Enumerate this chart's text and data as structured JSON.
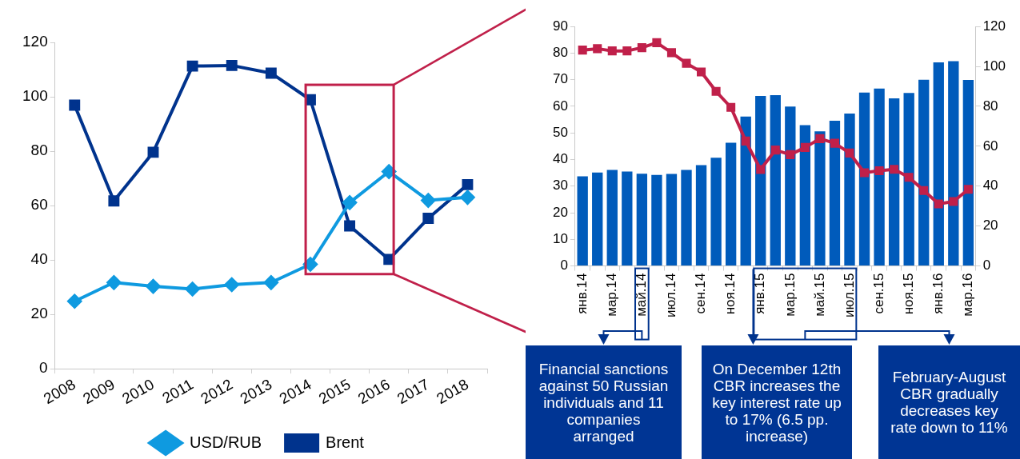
{
  "chart_data": [
    {
      "type": "line",
      "categories": [
        "2008",
        "2009",
        "2010",
        "2011",
        "2012",
        "2013",
        "2014",
        "2015",
        "2016",
        "2017",
        "2018"
      ],
      "series": [
        {
          "name": "USD/RUB",
          "color": "#0f9ae0",
          "marker": "diamond",
          "values": [
            24.8,
            31.7,
            30.3,
            29.3,
            30.9,
            31.7,
            38.4,
            61.1,
            72.5,
            61.9,
            63.0
          ]
        },
        {
          "name": "Brent",
          "color": "#00338d",
          "marker": "square",
          "values": [
            96.9,
            61.7,
            79.6,
            111.3,
            111.5,
            108.7,
            98.9,
            52.5,
            40.2,
            55.3,
            67.7
          ]
        }
      ],
      "ylim": [
        0,
        120
      ],
      "yticks": [
        0,
        20,
        40,
        60,
        80,
        100,
        120
      ],
      "grid": false,
      "legend": "bottom"
    },
    {
      "type": "bar",
      "categories": [
        "янв.14",
        null,
        "мар.14",
        null,
        "май.14",
        null,
        "июл.14",
        null,
        "сен.14",
        null,
        "ноя.14",
        null,
        "янв.15",
        null,
        "мар.15",
        null,
        "май.15",
        null,
        "июл.15",
        null,
        "сен.15",
        null,
        "ноя.15",
        null,
        "янв.16",
        null,
        "мар.16"
      ],
      "series": [
        {
          "type": "bar",
          "color": "#005bbb",
          "values": [
            33.7,
            35.1,
            36.1,
            35.5,
            34.7,
            34.2,
            34.6,
            36.1,
            37.9,
            40.7,
            46.3,
            56.2,
            63.9,
            64.2,
            59.9,
            52.9,
            50.6,
            54.6,
            57.3,
            65.2,
            66.7,
            63.0,
            65.0,
            70.0,
            76.5,
            77.0,
            69.9
          ]
        },
        {
          "type": "line",
          "axis": "y2",
          "color": "#c0204a",
          "marker": "square",
          "values": [
            108.2,
            108.9,
            107.8,
            107.8,
            109.4,
            111.9,
            106.9,
            101.6,
            97.2,
            87.5,
            79.5,
            62.6,
            48.3,
            58.1,
            55.8,
            59.4,
            63.8,
            61.5,
            56.6,
            46.7,
            47.7,
            48.4,
            44.4,
            37.8,
            31.1,
            32.3,
            38.4
          ]
        }
      ],
      "ylim": [
        0,
        90
      ],
      "yticks": [
        0,
        10,
        20,
        30,
        40,
        50,
        60,
        70,
        80,
        90
      ],
      "y2lim": [
        0,
        120
      ],
      "y2ticks": [
        0,
        20,
        40,
        60,
        80,
        100,
        120
      ],
      "grid": false,
      "legend": false,
      "annotations": [
        "Financial sanctions against 50 Russian individuals and 11 companies arranged",
        "On December 12th CBR increases the key interest rate up to 17% (6.5 pp. increase)",
        "February-August CBR gradually decreases key rate down to 11%"
      ]
    }
  ]
}
